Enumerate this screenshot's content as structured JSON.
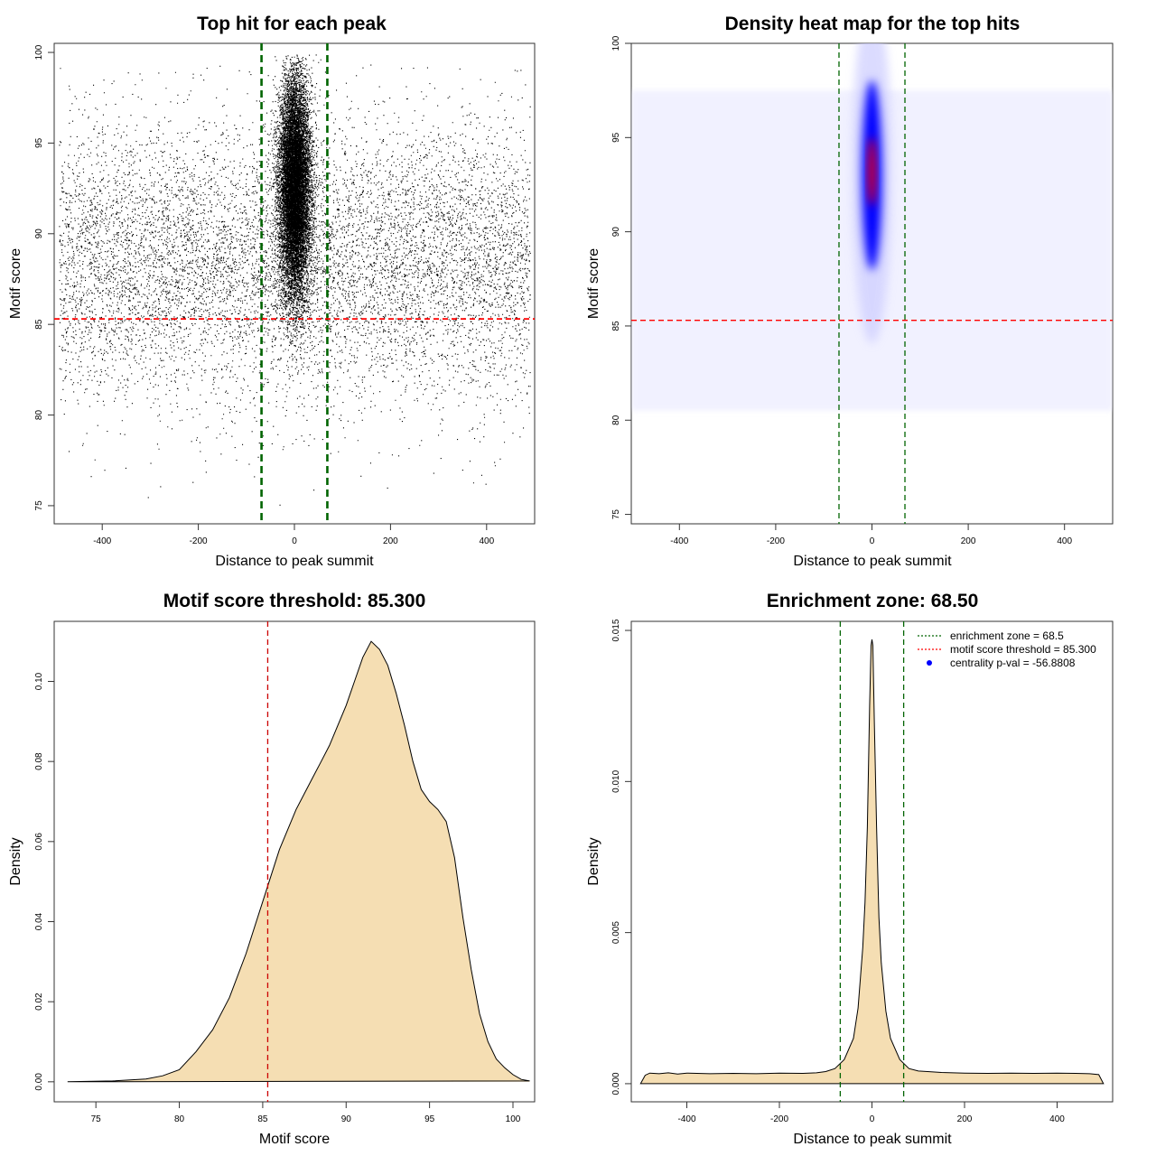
{
  "chart_data": [
    {
      "type": "scatter",
      "title": "Top hit for each peak",
      "xlabel": "Distance to peak summit",
      "ylabel": "Motif score",
      "xlim": [
        -500,
        500
      ],
      "ylim": [
        74,
        100.5
      ],
      "xticks": [
        -400,
        -200,
        0,
        200,
        400
      ],
      "yticks": [
        75,
        80,
        85,
        90,
        95,
        100
      ],
      "background": {
        "x_range": [
          -490,
          490
        ],
        "y_mean": 88.5,
        "y_sd": 3.8,
        "y_min": 74.5,
        "y_max": 99.5,
        "approx_points": 9000
      },
      "central_cluster": {
        "x_mean": 0,
        "x_sd": 16,
        "y_mean": 92.5,
        "y_sd": 3.0,
        "y_min": 83,
        "y_max": 99.9,
        "approx_points": 14000
      },
      "hlines": [
        {
          "y": 85.3,
          "color": "#ff0000",
          "style": "dashed"
        }
      ],
      "vlines": [
        {
          "x": -68.5,
          "color": "#006400",
          "style": "dashed"
        },
        {
          "x": 68.5,
          "color": "#006400",
          "style": "dashed"
        }
      ]
    },
    {
      "type": "heatmap",
      "title": "Density heat map for the top hits",
      "xlabel": "Distance to peak summit",
      "ylabel": "Motif score",
      "xlim": [
        -500,
        500
      ],
      "ylim": [
        74.5,
        100
      ],
      "xticks": [
        -400,
        -200,
        0,
        200,
        400
      ],
      "yticks": [
        75,
        80,
        85,
        90,
        95,
        100
      ],
      "colors": [
        "#ffffff",
        "#0000ff",
        "#ff0000"
      ],
      "peak": {
        "x": 0,
        "y": 93
      },
      "hlines": [
        {
          "y": 85.3,
          "color": "#ff0000",
          "style": "dashed"
        }
      ],
      "vlines": [
        {
          "x": -68.5,
          "color": "#006400",
          "style": "dashed"
        },
        {
          "x": 68.5,
          "color": "#006400",
          "style": "dashed"
        }
      ]
    },
    {
      "type": "area",
      "title": "Motif score threshold: 85.300",
      "xlabel": "Motif score",
      "ylabel": "Density",
      "xlim": [
        72.5,
        101.3
      ],
      "ylim": [
        -0.005,
        0.115
      ],
      "xticks": [
        75,
        80,
        85,
        90,
        95,
        100
      ],
      "yticks": [
        0.0,
        0.02,
        0.04,
        0.06,
        0.08,
        0.1
      ],
      "ytick_labels": [
        "0.00",
        "0.02",
        "0.04",
        "0.06",
        "0.08",
        "0.10"
      ],
      "fill": "#f5deb3",
      "x": [
        73.3,
        76,
        78,
        79,
        80,
        81,
        82,
        83,
        84,
        85,
        86,
        87,
        88,
        88.5,
        89,
        89.5,
        90,
        90.5,
        91,
        91.5,
        92,
        92.5,
        93,
        93.5,
        94,
        94.5,
        95,
        95.5,
        96,
        96.5,
        97,
        97.5,
        98,
        98.5,
        99,
        99.5,
        100,
        100.5,
        101
      ],
      "y": [
        0.0,
        0.0002,
        0.0007,
        0.0015,
        0.003,
        0.0075,
        0.013,
        0.021,
        0.032,
        0.045,
        0.058,
        0.068,
        0.076,
        0.08,
        0.084,
        0.089,
        0.094,
        0.1,
        0.106,
        0.11,
        0.108,
        0.104,
        0.097,
        0.089,
        0.08,
        0.073,
        0.07,
        0.068,
        0.065,
        0.056,
        0.041,
        0.028,
        0.017,
        0.01,
        0.0057,
        0.0035,
        0.0018,
        0.0006,
        0.0002
      ],
      "vlines": [
        {
          "x": 85.3,
          "color": "#cc0000",
          "style": "dashed"
        }
      ]
    },
    {
      "type": "area",
      "title": "Enrichment zone: 68.50",
      "xlabel": "Distance to peak summit",
      "ylabel": "Density",
      "xlim": [
        -520,
        520
      ],
      "ylim": [
        -0.0006,
        0.0153
      ],
      "xticks": [
        -400,
        -200,
        0,
        200,
        400
      ],
      "yticks": [
        0.0,
        0.005,
        0.01,
        0.015
      ],
      "ytick_labels": [
        "0.000",
        "0.005",
        "0.010",
        "0.015"
      ],
      "fill": "#f5deb3",
      "x": [
        -500,
        -490,
        -480,
        -460,
        -440,
        -420,
        -400,
        -350,
        -300,
        -250,
        -200,
        -150,
        -120,
        -100,
        -80,
        -60,
        -40,
        -30,
        -20,
        -15,
        -10,
        -5,
        -2,
        0,
        2,
        5,
        10,
        15,
        20,
        30,
        40,
        60,
        80,
        100,
        120,
        150,
        200,
        250,
        300,
        350,
        400,
        440,
        470,
        490,
        500
      ],
      "y": [
        0.0,
        0.00028,
        0.00035,
        0.00033,
        0.00036,
        0.00032,
        0.00035,
        0.00033,
        0.00034,
        0.00033,
        0.00035,
        0.00034,
        0.00036,
        0.0004,
        0.0005,
        0.0008,
        0.0015,
        0.0025,
        0.0045,
        0.006,
        0.0085,
        0.0125,
        0.0145,
        0.0147,
        0.0145,
        0.012,
        0.0085,
        0.0055,
        0.004,
        0.0024,
        0.0015,
        0.0008,
        0.0005,
        0.00042,
        0.0004,
        0.00037,
        0.00035,
        0.00034,
        0.00035,
        0.00034,
        0.00035,
        0.00034,
        0.00033,
        0.0003,
        0.0
      ],
      "vlines": [
        {
          "x": -68.5,
          "color": "#006400",
          "style": "dashed"
        },
        {
          "x": 68.5,
          "color": "#006400",
          "style": "dashed"
        }
      ],
      "legend": {
        "position": "top-right",
        "items": [
          {
            "label": "enrichment zone = 68.5",
            "color": "#006400",
            "symbol": "dotted-line"
          },
          {
            "label": "motif score threshold = 85.300",
            "color": "#ff0000",
            "symbol": "dotted-line"
          },
          {
            "label": "centrality p-val = -56.8808",
            "color": "#0000ff",
            "symbol": "dot"
          }
        ]
      }
    }
  ]
}
